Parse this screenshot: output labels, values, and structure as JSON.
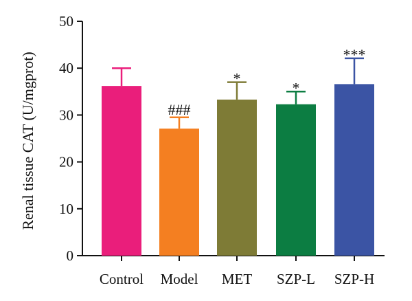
{
  "chart_data": {
    "type": "bar",
    "title": "",
    "xlabel": "",
    "ylabel": "Renal tissue CAT (U/mgprot)",
    "ylim": [
      0,
      50
    ],
    "yticks": [
      0,
      10,
      20,
      30,
      40,
      50
    ],
    "categories": [
      "Control",
      "Model",
      "MET",
      "SZP-L",
      "SZP-H"
    ],
    "values": [
      36.2,
      27.1,
      33.3,
      32.3,
      36.6
    ],
    "errors": [
      3.8,
      2.4,
      3.7,
      2.7,
      5.5
    ],
    "significance": [
      "",
      "###",
      "*",
      "*",
      "***"
    ],
    "colors": [
      "#ea1e7b",
      "#f47f21",
      "#7e7b36",
      "#0c7d42",
      "#3b54a4"
    ],
    "grid": false,
    "legend": "none"
  }
}
